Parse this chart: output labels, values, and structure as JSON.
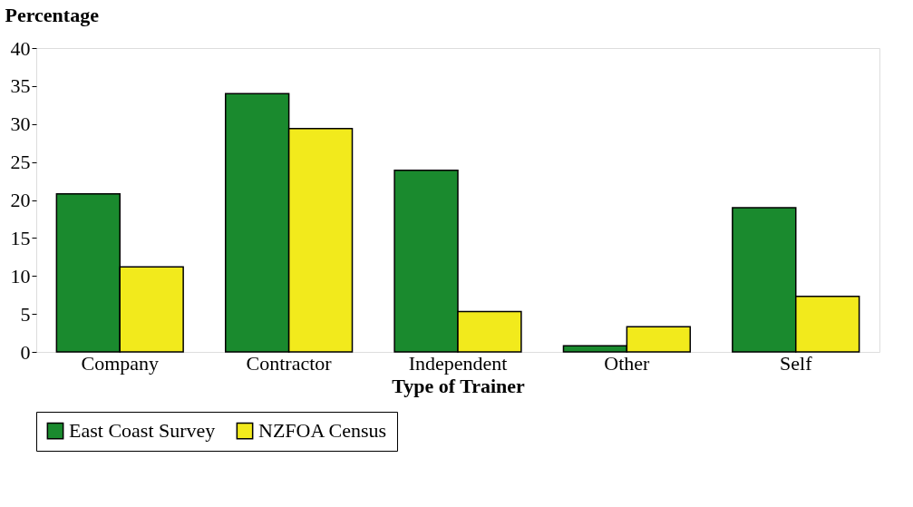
{
  "chart_data": {
    "type": "bar",
    "ylabel": "Percentage",
    "xlabel": "Type of Trainer",
    "categories": [
      "Company",
      "Contractor",
      "Independent",
      "Other",
      "Self"
    ],
    "series": [
      {
        "name": "East Coast Survey",
        "color": "#1a8a2e",
        "values": [
          20.8,
          34,
          23.9,
          0.8,
          19
        ]
      },
      {
        "name": "NZFOA Census",
        "color": "#f2ea1c",
        "values": [
          11.2,
          29.4,
          5.3,
          3.3,
          7.3
        ]
      }
    ],
    "ylim": [
      0,
      40
    ],
    "yticks": [
      0,
      5,
      10,
      15,
      20,
      25,
      30,
      35,
      40
    ],
    "grid": false,
    "legend": "bottom"
  }
}
